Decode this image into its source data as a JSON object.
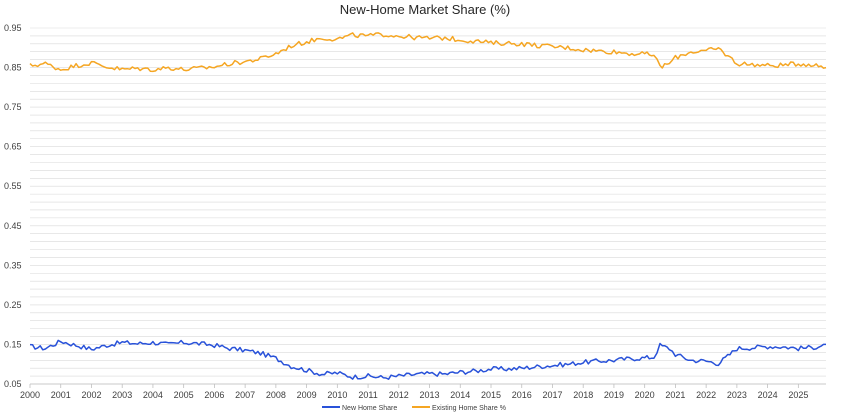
{
  "chart_data": {
    "type": "line",
    "title": "New-Home Market Share (%)",
    "xlabel": "",
    "ylabel": "",
    "x_start": 2000,
    "x_end": 2025.9,
    "x_ticks": [
      "2000",
      "2001",
      "2002",
      "2003",
      "2004",
      "2005",
      "2006",
      "2007",
      "2008",
      "2009",
      "2010",
      "2011",
      "2012",
      "2013",
      "2014",
      "2015",
      "2016",
      "2017",
      "2018",
      "2019",
      "2020",
      "2021",
      "2022",
      "2023",
      "2024",
      "2025"
    ],
    "ylim": [
      0.05,
      0.95
    ],
    "y_ticks": [
      "0.05",
      "0.15",
      "0.25",
      "0.35",
      "0.45",
      "0.55",
      "0.65",
      "0.75",
      "0.85",
      "0.95"
    ],
    "grid": true,
    "legend_position": "bottom",
    "series": [
      {
        "name": "New Home Share",
        "color": "#2952d9",
        "points": [
          [
            2000.0,
            0.145
          ],
          [
            2000.5,
            0.14
          ],
          [
            2001.0,
            0.158
          ],
          [
            2001.5,
            0.148
          ],
          [
            2002.0,
            0.138
          ],
          [
            2002.5,
            0.148
          ],
          [
            2003.0,
            0.155
          ],
          [
            2003.5,
            0.152
          ],
          [
            2004.0,
            0.155
          ],
          [
            2004.5,
            0.15
          ],
          [
            2005.0,
            0.155
          ],
          [
            2005.5,
            0.152
          ],
          [
            2006.0,
            0.148
          ],
          [
            2006.5,
            0.14
          ],
          [
            2007.0,
            0.135
          ],
          [
            2007.5,
            0.128
          ],
          [
            2008.0,
            0.115
          ],
          [
            2008.5,
            0.095
          ],
          [
            2009.0,
            0.085
          ],
          [
            2009.5,
            0.075
          ],
          [
            2010.0,
            0.078
          ],
          [
            2010.5,
            0.068
          ],
          [
            2011.0,
            0.07
          ],
          [
            2011.5,
            0.066
          ],
          [
            2012.0,
            0.07
          ],
          [
            2012.5,
            0.074
          ],
          [
            2013.0,
            0.076
          ],
          [
            2013.5,
            0.075
          ],
          [
            2014.0,
            0.08
          ],
          [
            2014.5,
            0.083
          ],
          [
            2015.0,
            0.088
          ],
          [
            2015.5,
            0.088
          ],
          [
            2016.0,
            0.09
          ],
          [
            2016.5,
            0.094
          ],
          [
            2017.0,
            0.097
          ],
          [
            2017.5,
            0.1
          ],
          [
            2018.0,
            0.105
          ],
          [
            2018.5,
            0.108
          ],
          [
            2019.0,
            0.11
          ],
          [
            2019.5,
            0.114
          ],
          [
            2020.0,
            0.116
          ],
          [
            2020.3,
            0.118
          ],
          [
            2020.5,
            0.148
          ],
          [
            2020.8,
            0.14
          ],
          [
            2021.0,
            0.125
          ],
          [
            2021.5,
            0.11
          ],
          [
            2022.0,
            0.108
          ],
          [
            2022.4,
            0.102
          ],
          [
            2022.7,
            0.12
          ],
          [
            2023.0,
            0.14
          ],
          [
            2023.5,
            0.142
          ],
          [
            2024.0,
            0.145
          ],
          [
            2024.5,
            0.144
          ],
          [
            2025.0,
            0.14
          ],
          [
            2025.5,
            0.143
          ],
          [
            2025.9,
            0.15
          ]
        ]
      },
      {
        "name": "Existing Home Share %",
        "color": "#f5a623",
        "points": [
          [
            2000.0,
            0.855
          ],
          [
            2000.5,
            0.86
          ],
          [
            2001.0,
            0.845
          ],
          [
            2001.5,
            0.855
          ],
          [
            2002.0,
            0.862
          ],
          [
            2002.5,
            0.852
          ],
          [
            2003.0,
            0.845
          ],
          [
            2003.5,
            0.848
          ],
          [
            2004.0,
            0.845
          ],
          [
            2004.5,
            0.85
          ],
          [
            2005.0,
            0.845
          ],
          [
            2005.5,
            0.848
          ],
          [
            2006.0,
            0.852
          ],
          [
            2006.5,
            0.86
          ],
          [
            2007.0,
            0.865
          ],
          [
            2007.5,
            0.872
          ],
          [
            2008.0,
            0.885
          ],
          [
            2008.5,
            0.905
          ],
          [
            2009.0,
            0.915
          ],
          [
            2009.5,
            0.925
          ],
          [
            2010.0,
            0.922
          ],
          [
            2010.5,
            0.932
          ],
          [
            2011.0,
            0.93
          ],
          [
            2011.5,
            0.934
          ],
          [
            2012.0,
            0.93
          ],
          [
            2012.5,
            0.926
          ],
          [
            2013.0,
            0.924
          ],
          [
            2013.5,
            0.925
          ],
          [
            2014.0,
            0.92
          ],
          [
            2014.5,
            0.917
          ],
          [
            2015.0,
            0.912
          ],
          [
            2015.5,
            0.912
          ],
          [
            2016.0,
            0.91
          ],
          [
            2016.5,
            0.906
          ],
          [
            2017.0,
            0.903
          ],
          [
            2017.5,
            0.9
          ],
          [
            2018.0,
            0.895
          ],
          [
            2018.5,
            0.892
          ],
          [
            2019.0,
            0.89
          ],
          [
            2019.5,
            0.886
          ],
          [
            2020.0,
            0.884
          ],
          [
            2020.3,
            0.882
          ],
          [
            2020.5,
            0.852
          ],
          [
            2020.8,
            0.86
          ],
          [
            2021.0,
            0.875
          ],
          [
            2021.5,
            0.89
          ],
          [
            2022.0,
            0.892
          ],
          [
            2022.4,
            0.898
          ],
          [
            2022.7,
            0.88
          ],
          [
            2023.0,
            0.86
          ],
          [
            2023.5,
            0.858
          ],
          [
            2024.0,
            0.855
          ],
          [
            2024.5,
            0.856
          ],
          [
            2025.0,
            0.86
          ],
          [
            2025.5,
            0.857
          ],
          [
            2025.9,
            0.85
          ]
        ]
      }
    ]
  }
}
